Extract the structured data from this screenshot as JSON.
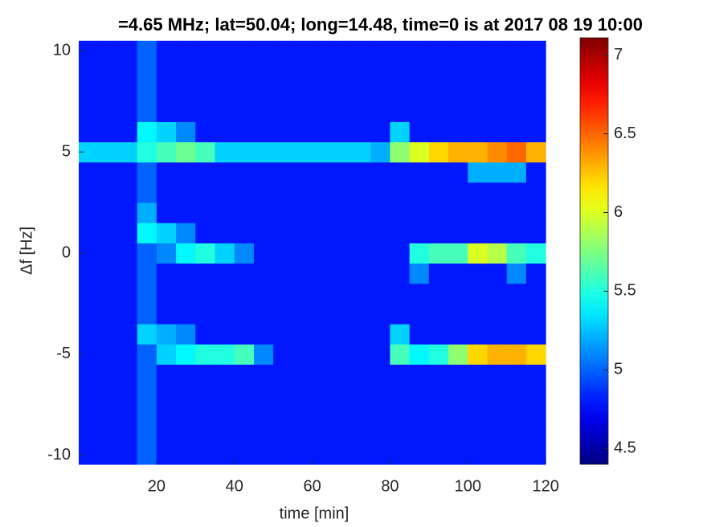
{
  "chart_data": {
    "type": "heatmap",
    "title": "=4.65 MHz;  lat=50.04; long=14.48, time=0 is at 2017 08 19 10:00",
    "xlabel": "time [min]",
    "ylabel": "Δf [Hz]",
    "xlim": [
      0,
      121
    ],
    "ylim": [
      -10.45,
      10.65
    ],
    "xticks": [
      20,
      40,
      60,
      80,
      100,
      120
    ],
    "yticks": [
      -10,
      -5,
      0,
      5,
      10
    ],
    "colormap": "jet",
    "clim": [
      4.4,
      7.11
    ],
    "cticks": [
      4.5,
      5,
      5.5,
      6,
      6.5,
      7
    ],
    "x": [
      2.5,
      7.5,
      12.5,
      17.5,
      22.5,
      27.5,
      32.5,
      37.5,
      42.5,
      47.5,
      52.5,
      57.5,
      62.5,
      67.5,
      72.5,
      77.5,
      82.5,
      87.5,
      92.5,
      97.5,
      102.5,
      107.5,
      112.5,
      117.5
    ],
    "y": [
      -10,
      -9,
      -8,
      -7,
      -6,
      -5,
      -4,
      -3,
      -2,
      -1,
      0,
      1,
      2,
      3,
      4,
      5,
      6,
      7,
      8,
      9,
      10
    ],
    "z": [
      [
        4.8,
        4.8,
        4.8,
        5.0,
        4.8,
        4.8,
        4.8,
        4.8,
        4.8,
        4.8,
        4.8,
        4.8,
        4.8,
        4.8,
        4.8,
        4.8,
        4.8,
        4.8,
        4.8,
        4.8,
        4.8,
        4.8,
        4.8,
        4.8
      ],
      [
        4.8,
        4.8,
        4.8,
        5.0,
        4.8,
        4.8,
        4.8,
        4.8,
        4.8,
        4.8,
        4.8,
        4.8,
        4.8,
        4.8,
        4.8,
        4.8,
        4.8,
        4.8,
        4.8,
        4.8,
        4.8,
        4.8,
        4.8,
        4.8
      ],
      [
        4.8,
        4.8,
        4.8,
        5.0,
        4.8,
        4.8,
        4.8,
        4.8,
        4.8,
        4.8,
        4.8,
        4.8,
        4.8,
        4.8,
        4.8,
        4.8,
        4.8,
        4.8,
        4.8,
        4.8,
        4.8,
        4.8,
        4.8,
        4.8
      ],
      [
        4.8,
        4.8,
        4.8,
        5.0,
        4.8,
        4.8,
        4.8,
        4.8,
        4.8,
        4.8,
        4.8,
        4.8,
        4.8,
        4.8,
        4.8,
        4.8,
        4.8,
        4.8,
        4.8,
        4.8,
        4.8,
        4.8,
        4.8,
        4.8
      ],
      [
        4.8,
        4.8,
        4.8,
        5.0,
        4.8,
        4.8,
        4.8,
        4.8,
        4.8,
        4.8,
        4.8,
        4.8,
        4.8,
        4.8,
        4.8,
        4.8,
        4.8,
        4.8,
        4.8,
        4.8,
        4.8,
        4.8,
        4.8,
        4.8
      ],
      [
        4.8,
        4.8,
        4.8,
        5.0,
        5.3,
        5.4,
        5.5,
        5.5,
        5.6,
        5.1,
        4.8,
        4.8,
        4.8,
        4.8,
        4.8,
        4.8,
        5.6,
        5.4,
        5.5,
        5.8,
        6.2,
        6.3,
        6.3,
        6.2
      ],
      [
        4.8,
        4.8,
        4.8,
        5.3,
        5.2,
        5.1,
        4.8,
        4.8,
        4.8,
        4.8,
        4.8,
        4.8,
        4.8,
        4.8,
        4.8,
        4.8,
        5.3,
        4.8,
        4.8,
        4.8,
        4.8,
        4.8,
        4.8,
        4.8
      ],
      [
        4.8,
        4.8,
        4.8,
        5.0,
        4.8,
        4.8,
        4.8,
        4.8,
        4.8,
        4.8,
        4.8,
        4.8,
        4.8,
        4.8,
        4.8,
        4.8,
        4.8,
        4.8,
        4.8,
        4.8,
        4.8,
        4.8,
        4.8,
        4.8
      ],
      [
        4.8,
        4.8,
        4.8,
        5.0,
        4.8,
        4.8,
        4.8,
        4.8,
        4.8,
        4.8,
        4.8,
        4.8,
        4.8,
        4.8,
        4.8,
        4.8,
        4.8,
        4.8,
        4.8,
        4.8,
        4.8,
        4.8,
        4.8,
        4.8
      ],
      [
        4.8,
        4.8,
        4.8,
        5.0,
        4.8,
        4.8,
        4.8,
        4.8,
        4.8,
        4.8,
        4.8,
        4.8,
        4.8,
        4.8,
        4.8,
        4.8,
        4.8,
        5.1,
        4.8,
        4.8,
        4.8,
        4.8,
        5.1,
        4.8
      ],
      [
        4.8,
        4.8,
        4.8,
        5.0,
        5.1,
        5.4,
        5.5,
        5.3,
        5.1,
        4.8,
        4.8,
        4.8,
        4.8,
        4.8,
        4.8,
        4.8,
        4.8,
        5.5,
        5.6,
        5.6,
        6.0,
        5.9,
        5.6,
        5.5
      ],
      [
        4.8,
        4.8,
        4.8,
        5.4,
        5.3,
        5.1,
        4.8,
        4.8,
        4.8,
        4.8,
        4.8,
        4.8,
        4.8,
        4.8,
        4.8,
        4.8,
        4.8,
        4.8,
        4.8,
        4.8,
        4.8,
        4.8,
        4.8,
        4.8
      ],
      [
        4.8,
        4.8,
        4.8,
        5.2,
        4.8,
        4.8,
        4.8,
        4.8,
        4.8,
        4.8,
        4.8,
        4.8,
        4.8,
        4.8,
        4.8,
        4.8,
        4.8,
        4.8,
        4.8,
        4.8,
        4.8,
        4.8,
        4.8,
        4.8
      ],
      [
        4.8,
        4.8,
        4.8,
        5.0,
        4.8,
        4.8,
        4.8,
        4.8,
        4.8,
        4.8,
        4.8,
        4.8,
        4.8,
        4.8,
        4.8,
        4.8,
        4.8,
        4.8,
        4.8,
        4.8,
        4.8,
        4.8,
        4.8,
        4.8
      ],
      [
        4.8,
        4.8,
        4.8,
        5.0,
        4.8,
        4.8,
        4.8,
        4.8,
        4.8,
        4.8,
        4.8,
        4.8,
        4.8,
        4.8,
        4.8,
        4.8,
        4.8,
        4.8,
        4.8,
        4.8,
        5.2,
        5.2,
        5.2,
        4.8
      ],
      [
        5.3,
        5.3,
        5.3,
        5.5,
        5.6,
        5.7,
        5.6,
        5.3,
        5.3,
        5.3,
        5.3,
        5.3,
        5.3,
        5.3,
        5.3,
        5.2,
        5.8,
        6.0,
        6.2,
        6.3,
        6.3,
        6.4,
        6.5,
        6.3
      ],
      [
        4.8,
        4.8,
        4.8,
        5.4,
        5.3,
        5.1,
        4.8,
        4.8,
        4.8,
        4.8,
        4.8,
        4.8,
        4.8,
        4.8,
        4.8,
        4.8,
        5.3,
        4.8,
        4.8,
        4.8,
        4.8,
        4.8,
        4.8,
        4.8
      ],
      [
        4.8,
        4.8,
        4.8,
        5.0,
        4.8,
        4.8,
        4.8,
        4.8,
        4.8,
        4.8,
        4.8,
        4.8,
        4.8,
        4.8,
        4.8,
        4.8,
        4.8,
        4.8,
        4.8,
        4.8,
        4.8,
        4.8,
        4.8,
        4.8
      ],
      [
        4.8,
        4.8,
        4.8,
        5.0,
        4.8,
        4.8,
        4.8,
        4.8,
        4.8,
        4.8,
        4.8,
        4.8,
        4.8,
        4.8,
        4.8,
        4.8,
        4.8,
        4.8,
        4.8,
        4.8,
        4.8,
        4.8,
        4.8,
        4.8
      ],
      [
        4.8,
        4.8,
        4.8,
        5.0,
        4.8,
        4.8,
        4.8,
        4.8,
        4.8,
        4.8,
        4.8,
        4.8,
        4.8,
        4.8,
        4.8,
        4.8,
        4.8,
        4.8,
        4.8,
        4.8,
        4.8,
        4.8,
        4.8,
        4.8
      ],
      [
        4.8,
        4.8,
        4.8,
        5.0,
        4.8,
        4.8,
        4.8,
        4.8,
        4.8,
        4.8,
        4.8,
        4.8,
        4.8,
        4.8,
        4.8,
        4.8,
        4.8,
        4.8,
        4.8,
        4.8,
        4.8,
        4.8,
        4.8,
        4.8
      ]
    ]
  }
}
